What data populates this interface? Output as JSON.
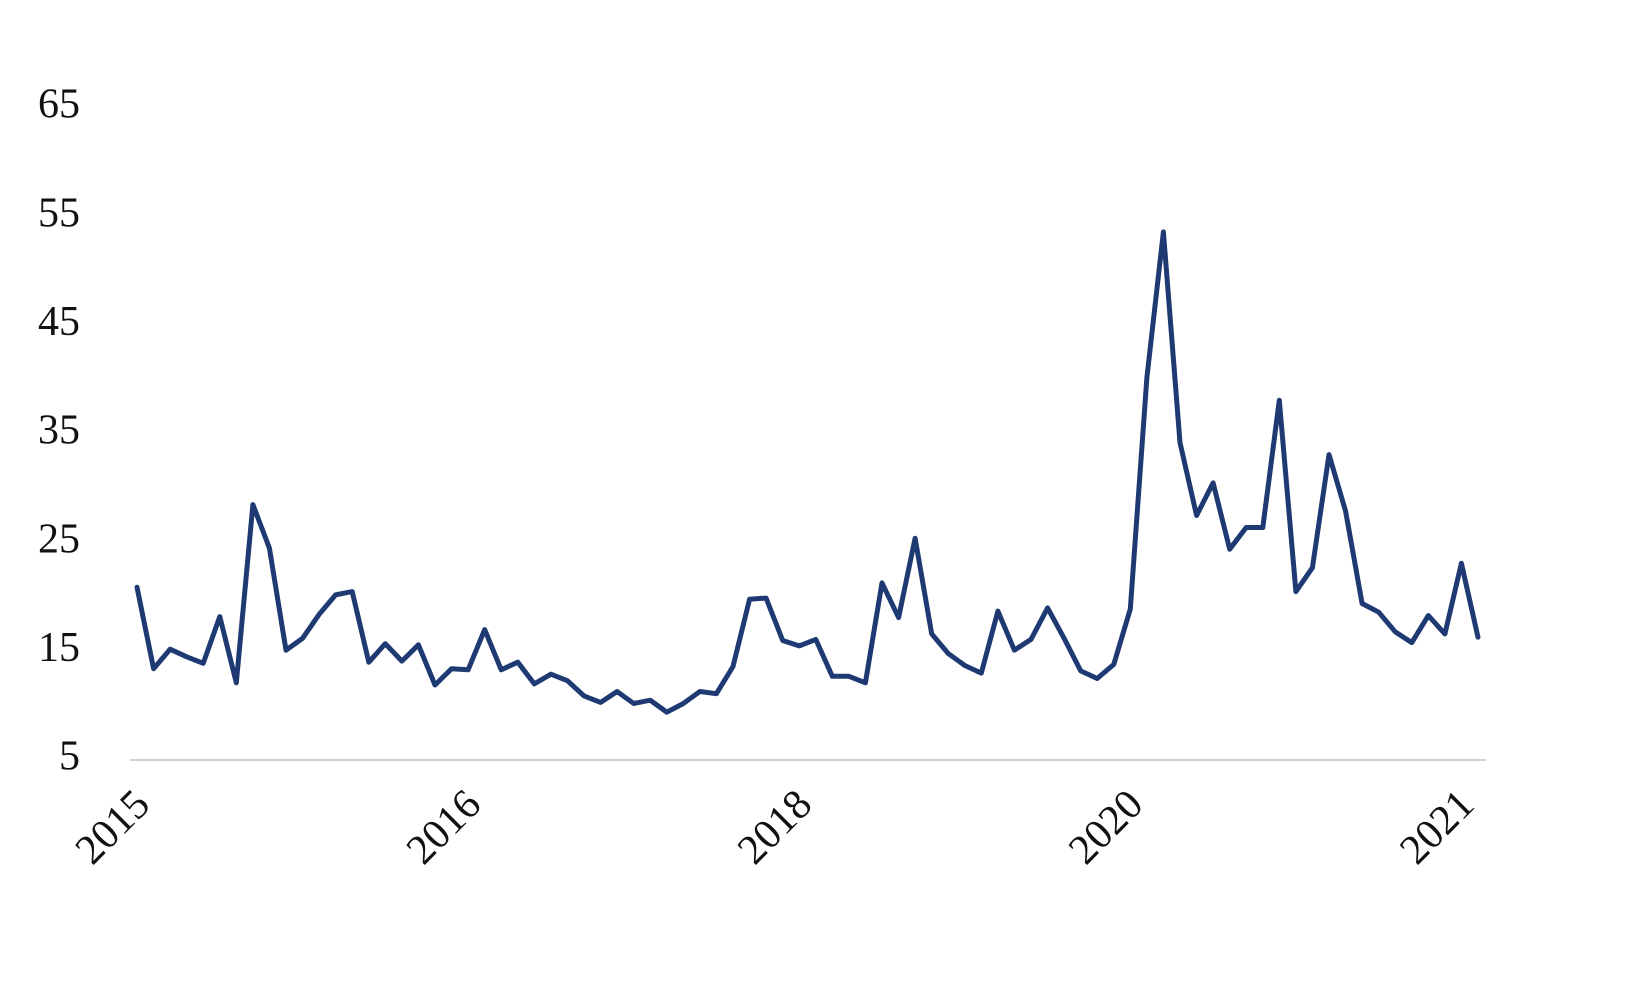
{
  "chart_data": {
    "type": "line",
    "categories": [
      "2015",
      null,
      null,
      null,
      null,
      null,
      null,
      null,
      null,
      null,
      null,
      null,
      null,
      null,
      null,
      null,
      null,
      null,
      null,
      null,
      "2016",
      null,
      null,
      null,
      null,
      null,
      null,
      null,
      null,
      null,
      null,
      null,
      null,
      null,
      null,
      null,
      null,
      null,
      null,
      null,
      "2018",
      null,
      null,
      null,
      null,
      null,
      null,
      null,
      null,
      null,
      null,
      null,
      null,
      null,
      null,
      null,
      null,
      null,
      null,
      null,
      "2020",
      null,
      null,
      null,
      null,
      null,
      null,
      null,
      null,
      null,
      null,
      null,
      null,
      null,
      null,
      null,
      null,
      null,
      null,
      null,
      "2021",
      null
    ],
    "values": [
      20.9,
      13.4,
      15.2,
      14.5,
      13.9,
      18.2,
      12.1,
      28.5,
      24.5,
      15.1,
      16.2,
      18.4,
      20.2,
      20.5,
      14.0,
      15.7,
      14.1,
      15.6,
      11.9,
      13.4,
      13.3,
      17.0,
      13.3,
      14.0,
      12.0,
      12.9,
      12.3,
      10.9,
      10.3,
      11.3,
      10.2,
      10.5,
      9.4,
      10.2,
      11.3,
      11.1,
      13.6,
      19.8,
      19.9,
      16.0,
      15.5,
      16.1,
      12.7,
      12.7,
      12.1,
      21.3,
      18.1,
      25.4,
      16.6,
      14.8,
      13.7,
      13.0,
      18.7,
      15.1,
      16.1,
      19.0,
      16.2,
      13.2,
      12.5,
      13.8,
      18.9,
      40.2,
      53.6,
      34.2,
      27.5,
      30.5,
      24.4,
      26.4,
      26.4,
      38.1,
      20.5,
      22.7,
      33.1,
      27.9,
      19.4,
      18.6,
      16.8,
      15.8,
      18.3,
      16.6,
      23.1,
      16.3
    ],
    "color": "#1f3a73",
    "ylim": [
      5,
      65
    ],
    "yticks": [
      5,
      15,
      25,
      35,
      45,
      55,
      65
    ],
    "grid": false
  }
}
